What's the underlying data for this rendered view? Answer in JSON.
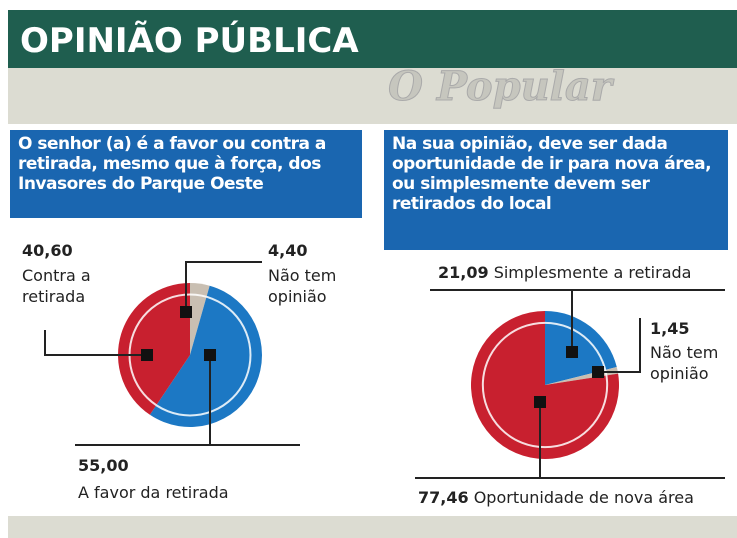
{
  "title": "OPINIÃO PÚBLICA",
  "watermark": "O Popular",
  "chart_data": [
    {
      "type": "pie",
      "title": "O senhor (a) é a favor ou contra a retirada, mesmo que à força, dos Invasores do Parque Oeste",
      "categories": [
        "Não tem opinião",
        "A favor da retirada",
        "Contra a retirada"
      ],
      "values": [
        4.4,
        55,
        40.6
      ],
      "value_labels": [
        "4,40",
        "55,00",
        "40,60"
      ],
      "colors": [
        "#c9bfb2",
        "#1c78c4",
        "#c8202f"
      ]
    },
    {
      "type": "pie",
      "title": "Na sua opinião, deve ser dada oportunidade de ir para nova área, ou simplesmente devem ser retirados do local",
      "categories": [
        "Simplesmente a retirada",
        "Não tem opinião",
        "Oportunidade de nova área"
      ],
      "values": [
        21.09,
        1.45,
        77.46
      ],
      "value_labels": [
        "21,09",
        "1,45",
        "77,46"
      ],
      "colors": [
        "#1c78c4",
        "#c9bfb2",
        "#c8202f"
      ]
    }
  ]
}
